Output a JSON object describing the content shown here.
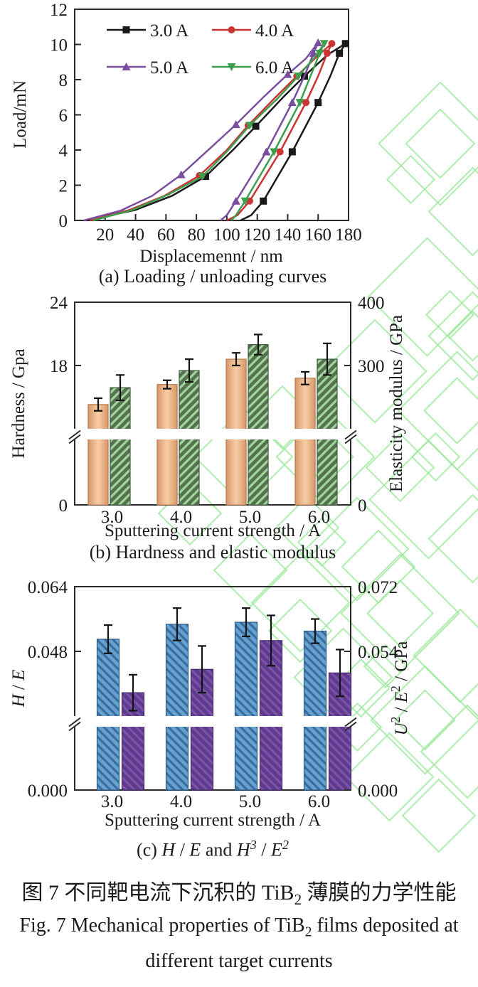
{
  "figure": {
    "captions": {
      "a": "(a) Loading / unloading curves",
      "b": "(b) Hardness and elastic modulus",
      "c_parts": [
        {
          "t": "(c) "
        },
        {
          "t": "H",
          "i": true
        },
        {
          "t": " / "
        },
        {
          "t": "E",
          "i": true
        },
        {
          "t": " and "
        },
        {
          "t": "H",
          "i": true
        },
        {
          "t": "3",
          "i": true,
          "sup": true
        },
        {
          "t": " / "
        },
        {
          "t": "E",
          "i": true
        },
        {
          "t": "2",
          "i": true,
          "sup": true
        }
      ],
      "zh_prefix": "图 7  不同靶电流下沉积的 TiB",
      "zh_sub": "2",
      "zh_suffix": " 薄膜的力学性能",
      "en_prefix": "Fig. 7  Mechanical properties of TiB",
      "en_sub": "2",
      "en_suffix": " films deposited at",
      "en_line2": "different target currents"
    },
    "watermark_color": "#9ae89a"
  },
  "chart_data": [
    {
      "id": "chart-a",
      "type": "line",
      "title": "",
      "xlabel": "Displacemennt / nm",
      "ylabel": "Load/mN",
      "xlim": [
        0,
        180
      ],
      "ylim": [
        0,
        12
      ],
      "xticks": [
        20,
        40,
        60,
        80,
        100,
        120,
        140,
        160,
        180
      ],
      "yticks": [
        0,
        2,
        4,
        6,
        8,
        10,
        12
      ],
      "legend_position": "top-left-inside",
      "series": [
        {
          "name": "3.0 A",
          "color": "#1a1a1a",
          "marker": "square",
          "loading": [
            [
              8,
              0
            ],
            [
              40,
              0.6
            ],
            [
              64,
              1.4
            ],
            [
              86,
              2.5
            ],
            [
              104,
              4.0
            ],
            [
              119,
              5.35
            ],
            [
              137,
              7.0
            ],
            [
              151,
              8.2
            ],
            [
              166,
              9.4
            ],
            [
              178,
              10.05
            ]
          ],
          "unloading": [
            [
              178,
              10.05
            ],
            [
              174,
              9.5
            ],
            [
              168,
              8.2
            ],
            [
              160,
              6.7
            ],
            [
              143,
              3.9
            ],
            [
              124,
              1.1
            ],
            [
              116,
              0.3
            ],
            [
              109,
              0
            ]
          ],
          "load_marks": [
            3,
            5,
            7,
            9
          ],
          "unload_marks": [
            1,
            3,
            4,
            5
          ]
        },
        {
          "name": "4.0 A",
          "color": "#cc3333",
          "marker": "circle",
          "loading": [
            [
              10,
              0
            ],
            [
              36,
              0.6
            ],
            [
              59,
              1.4
            ],
            [
              82,
              2.55
            ],
            [
              100,
              4.0
            ],
            [
              114,
              5.4
            ],
            [
              132,
              7.0
            ],
            [
              146,
              8.2
            ],
            [
              159,
              9.3
            ],
            [
              169,
              10.05
            ]
          ],
          "unloading": [
            [
              169,
              10.05
            ],
            [
              166,
              9.5
            ],
            [
              160,
              8.2
            ],
            [
              152,
              6.7
            ],
            [
              135,
              3.9
            ],
            [
              115,
              1.1
            ],
            [
              107,
              0.3
            ],
            [
              100,
              0
            ]
          ],
          "load_marks": [
            3,
            5,
            7,
            9
          ],
          "unload_marks": [
            1,
            3,
            4,
            5
          ]
        },
        {
          "name": "5.0 A",
          "color": "#7a4e9e",
          "marker": "triangle-up",
          "loading": [
            [
              6,
              0
            ],
            [
              30,
              0.55
            ],
            [
              51,
              1.4
            ],
            [
              70,
              2.6
            ],
            [
              89,
              4.1
            ],
            [
              106,
              5.45
            ],
            [
              124,
              7.0
            ],
            [
              140,
              8.3
            ],
            [
              152,
              9.2
            ],
            [
              160,
              10.1
            ]
          ],
          "unloading": [
            [
              160,
              10.1
            ],
            [
              157,
              9.5
            ],
            [
              151,
              8.2
            ],
            [
              143,
              6.7
            ],
            [
              126,
              3.9
            ],
            [
              106,
              1.1
            ],
            [
              100,
              0.3
            ],
            [
              96,
              0
            ]
          ],
          "load_marks": [
            3,
            5,
            7,
            9
          ],
          "unload_marks": [
            1,
            3,
            4,
            5
          ]
        },
        {
          "name": "6.0 A",
          "color": "#3f9e4d",
          "marker": "triangle-down",
          "loading": [
            [
              12,
              0
            ],
            [
              38,
              0.6
            ],
            [
              61,
              1.45
            ],
            [
              84,
              2.5
            ],
            [
              101,
              4.0
            ],
            [
              115,
              5.4
            ],
            [
              133,
              6.9
            ],
            [
              147,
              8.2
            ],
            [
              158,
              9.3
            ],
            [
              164,
              10.05
            ]
          ],
          "unloading": [
            [
              164,
              10.05
            ],
            [
              161,
              9.5
            ],
            [
              155,
              8.2
            ],
            [
              148,
              6.7
            ],
            [
              131,
              3.9
            ],
            [
              112,
              1.1
            ],
            [
              106,
              0.3
            ],
            [
              103,
              0
            ]
          ],
          "load_marks": [
            3,
            5,
            7,
            9
          ],
          "unload_marks": [
            1,
            3,
            4,
            5
          ]
        }
      ]
    },
    {
      "id": "chart-b",
      "type": "bar-broken",
      "categories": [
        "3.0",
        "4.0",
        "5.0",
        "6.0"
      ],
      "xlabel": "Sputtering current strength / A",
      "left": {
        "label_parts": [
          {
            "t": "Hardness / Gpa"
          }
        ],
        "ticks": [
          0,
          18,
          24
        ],
        "fmt": 0,
        "axis_max": 24,
        "break_min": 12,
        "values": [
          14.3,
          16.2,
          18.6,
          16.8
        ],
        "errors": [
          0.6,
          0.4,
          0.6,
          0.6
        ],
        "bar": {
          "type": "gradient",
          "base": "#d8976a",
          "light": "#f7cda4",
          "stroke": "#b5794e"
        }
      },
      "right": {
        "label_parts": [
          {
            "t": "Elasticity modulus / GPa"
          }
        ],
        "ticks": [
          0,
          300,
          400
        ],
        "fmt": 0,
        "axis_max": 400,
        "break_min": 200,
        "values": [
          265,
          292,
          333,
          310
        ],
        "errors": [
          20,
          18,
          16,
          25
        ],
        "bar": {
          "type": "hatch",
          "base": "#55724f",
          "stripe": "#a3d49d",
          "stroke": "#3e5a3c",
          "dir": -45
        }
      }
    },
    {
      "id": "chart-c",
      "type": "bar-broken",
      "categories": [
        "3.0",
        "4.0",
        "5.0",
        "6.0"
      ],
      "xlabel": "Sputtering current strength / A",
      "left": {
        "label_parts": [
          {
            "t": "H",
            "i": true
          },
          {
            "t": " / "
          },
          {
            "t": "E",
            "i": true
          }
        ],
        "ticks": [
          0,
          0.048,
          0.064
        ],
        "fmt": 3,
        "axis_max": 0.064,
        "break_min": 0.032,
        "values": [
          0.051,
          0.0547,
          0.0552,
          0.053
        ],
        "errors": [
          0.0035,
          0.004,
          0.0035,
          0.003
        ],
        "bar": {
          "type": "hatch",
          "base": "#67a2cf",
          "stripe": "#396d9e",
          "stroke": "#2c5b88",
          "dir": 45
        }
      },
      "right": {
        "label_parts": [
          {
            "t": "U",
            "i": true
          },
          {
            "t": "2",
            "sup": true
          },
          {
            "t": " / "
          },
          {
            "t": "E",
            "i": true
          },
          {
            "t": "2",
            "sup": true
          },
          {
            "t": " / GPa"
          }
        ],
        "ticks": [
          0,
          0.054,
          0.072
        ],
        "fmt": 3,
        "axis_max": 0.072,
        "break_min": 0.036,
        "values": [
          0.0425,
          0.049,
          0.057,
          0.048
        ],
        "errors": [
          0.005,
          0.0065,
          0.007,
          0.0065
        ],
        "bar": {
          "type": "hatch",
          "base": "#5e3a90",
          "stripe": "#7b55a3",
          "stroke": "#42286b",
          "dir": 45
        }
      }
    }
  ]
}
